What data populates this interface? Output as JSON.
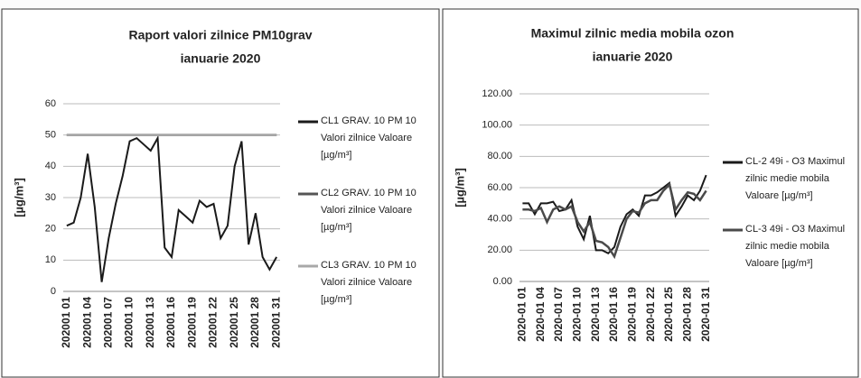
{
  "chart_data": [
    {
      "type": "line",
      "title": "Raport valori zilnice PM10grav",
      "subtitle": "ianuarie 2020",
      "ylabel": "[µg/m³]",
      "categories": [
        "202001 01",
        null,
        null,
        "202001 04",
        null,
        null,
        "202001 07",
        null,
        null,
        "202001 10",
        null,
        null,
        "202001 13",
        null,
        null,
        "202001 16",
        null,
        null,
        "202001 19",
        null,
        null,
        "202001 22",
        null,
        null,
        "202001 25",
        null,
        null,
        "202001 28",
        null,
        null,
        "202001 31"
      ],
      "series": [
        {
          "name": "CL1 GRAV. 10 PM 10 Valori zilnice Valoare [µg/m³]",
          "color": "#1a1a1a",
          "values": [
            21,
            22,
            30,
            44,
            27,
            3,
            17,
            28,
            37,
            48,
            49,
            47,
            45,
            49,
            14,
            11,
            26,
            24,
            22,
            29,
            27,
            28,
            17,
            21,
            40,
            48,
            15,
            25,
            11,
            7,
            11
          ]
        },
        {
          "name": "CL2 GRAV. 10 PM 10 Valori zilnice Valoare [µg/m³]",
          "color": "#555555",
          "values": [
            50,
            50,
            50,
            50,
            50,
            50,
            50,
            50,
            50,
            50,
            50,
            50,
            50,
            50,
            50,
            50,
            50,
            50,
            50,
            50,
            50,
            50,
            50,
            50,
            50,
            50,
            50,
            50,
            50,
            50,
            50
          ]
        },
        {
          "name": "CL3 GRAV. 10 PM 10 Valori zilnice Valoare [µg/m³]",
          "color": "#a8a8a8",
          "values": [
            50,
            50,
            50,
            50,
            50,
            50,
            50,
            50,
            50,
            50,
            50,
            50,
            50,
            50,
            50,
            50,
            50,
            50,
            50,
            50,
            50,
            50,
            50,
            50,
            50,
            50,
            50,
            50,
            50,
            50,
            50
          ]
        }
      ],
      "ylim": [
        0,
        60
      ],
      "yticks": [
        0,
        10,
        20,
        30,
        40,
        50,
        60
      ],
      "grid": true
    },
    {
      "type": "line",
      "title": "Maximul zilnic media mobila ozon",
      "subtitle": "ianuarie 2020",
      "ylabel": "[µg/m³]",
      "categories": [
        "2020-01 01",
        null,
        null,
        "2020-01 04",
        null,
        null,
        "2020-01 07",
        null,
        null,
        "2020-01 10",
        null,
        null,
        "2020-01 13",
        null,
        null,
        "2020-01 16",
        null,
        null,
        "2020-01 19",
        null,
        null,
        "2020-01 22",
        null,
        null,
        "2020-01 25",
        null,
        null,
        "2020-01 28",
        null,
        null,
        "2020-01 31"
      ],
      "series": [
        {
          "name": "CL-2 49i - O3 Maximul zilnic medie mobila Valoare [µg/m³]",
          "color": "#1a1a1a",
          "values": [
            50,
            50,
            43,
            50,
            50,
            51,
            45,
            46,
            52,
            35,
            27,
            42,
            20,
            20,
            18,
            22,
            35,
            43,
            46,
            42,
            55,
            55,
            57,
            60,
            63,
            42,
            48,
            55,
            52,
            58,
            68
          ]
        },
        {
          "name": "CL-3 49i - O3 Maximul zilnic medie mobila Valoare [µg/m³]",
          "color": "#4a4a4a",
          "values": [
            46,
            46,
            45,
            47,
            38,
            46,
            48,
            46,
            48,
            38,
            32,
            38,
            26,
            25,
            22,
            16,
            28,
            40,
            45,
            44,
            50,
            52,
            52,
            58,
            62,
            46,
            52,
            57,
            56,
            52,
            58
          ]
        }
      ],
      "ylim": [
        0,
        120
      ],
      "yticks": [
        {
          "value": 0,
          "label": "0.00"
        },
        {
          "value": 20,
          "label": "20.00"
        },
        {
          "value": 40,
          "label": "40.00"
        },
        {
          "value": 60,
          "label": "60.00"
        },
        {
          "value": 80,
          "label": "80.00"
        },
        {
          "value": 100,
          "label": "100.00"
        },
        {
          "value": 120,
          "label": "120.00"
        }
      ],
      "grid": true
    }
  ]
}
